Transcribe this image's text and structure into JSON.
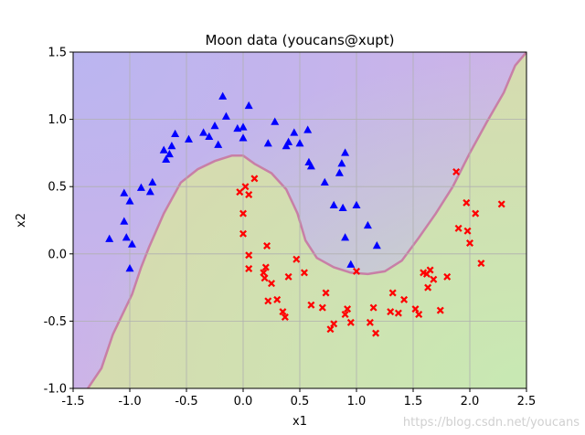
{
  "chart_data": {
    "type": "scatter",
    "title": "Moon data (youcans@xupt)",
    "xlabel": "x1",
    "ylabel": "x2",
    "xlim": [
      -1.5,
      2.5
    ],
    "ylim": [
      -1.0,
      1.5
    ],
    "xticks": [
      "-1.5",
      "-1.0",
      "-0.5",
      "0.0",
      "0.5",
      "1.0",
      "1.5",
      "2.0",
      "2.5"
    ],
    "yticks": [
      "-1.0",
      "-0.5",
      "0.0",
      "0.5",
      "1.0",
      "1.5"
    ],
    "grid": true,
    "background_regions": {
      "class0_color": "#cdb3e8",
      "class1_color": "#d6dbb0",
      "corner_blue": "#b6b6f2",
      "corner_green": "#c4ecb4",
      "boundary_color": "#c87fa6",
      "boundary": [
        [
          -1.37,
          -1.0
        ],
        [
          -1.25,
          -0.85
        ],
        [
          -1.15,
          -0.6
        ],
        [
          -0.98,
          -0.3
        ],
        [
          -0.9,
          -0.1
        ],
        [
          -0.83,
          0.05
        ],
        [
          -0.7,
          0.3
        ],
        [
          -0.55,
          0.53
        ],
        [
          -0.4,
          0.63
        ],
        [
          -0.25,
          0.69
        ],
        [
          -0.1,
          0.73
        ],
        [
          0.0,
          0.73
        ],
        [
          0.1,
          0.67
        ],
        [
          0.25,
          0.6
        ],
        [
          0.38,
          0.48
        ],
        [
          0.48,
          0.3
        ],
        [
          0.55,
          0.1
        ],
        [
          0.65,
          -0.03
        ],
        [
          0.8,
          -0.1
        ],
        [
          0.95,
          -0.14
        ],
        [
          1.1,
          -0.15
        ],
        [
          1.25,
          -0.13
        ],
        [
          1.4,
          -0.05
        ],
        [
          1.55,
          0.12
        ],
        [
          1.7,
          0.3
        ],
        [
          1.85,
          0.5
        ],
        [
          2.0,
          0.75
        ],
        [
          2.15,
          0.98
        ],
        [
          2.3,
          1.2
        ],
        [
          2.4,
          1.4
        ],
        [
          2.5,
          1.5
        ]
      ]
    },
    "series": [
      {
        "marker": "triangle",
        "color": "#0000ff",
        "points": [
          [
            -1.18,
            0.11
          ],
          [
            -1.05,
            0.45
          ],
          [
            -1.05,
            0.24
          ],
          [
            -1.03,
            0.12
          ],
          [
            -1.0,
            0.39
          ],
          [
            -0.98,
            0.07
          ],
          [
            -1.0,
            -0.11
          ],
          [
            -0.9,
            0.49
          ],
          [
            -0.82,
            0.46
          ],
          [
            -0.8,
            0.53
          ],
          [
            -0.7,
            0.77
          ],
          [
            -0.68,
            0.7
          ],
          [
            -0.65,
            0.74
          ],
          [
            -0.63,
            0.8
          ],
          [
            -0.6,
            0.89
          ],
          [
            -0.48,
            0.85
          ],
          [
            -0.35,
            0.9
          ],
          [
            -0.3,
            0.87
          ],
          [
            -0.25,
            0.95
          ],
          [
            -0.22,
            0.81
          ],
          [
            -0.18,
            1.17
          ],
          [
            -0.15,
            1.02
          ],
          [
            -0.05,
            0.93
          ],
          [
            0.0,
            0.86
          ],
          [
            0.0,
            0.94
          ],
          [
            0.05,
            1.1
          ],
          [
            0.22,
            0.82
          ],
          [
            0.28,
            0.98
          ],
          [
            0.38,
            0.8
          ],
          [
            0.4,
            0.83
          ],
          [
            0.45,
            0.9
          ],
          [
            0.5,
            0.82
          ],
          [
            0.57,
            0.92
          ],
          [
            0.58,
            0.68
          ],
          [
            0.6,
            0.65
          ],
          [
            0.72,
            0.53
          ],
          [
            0.8,
            0.36
          ],
          [
            0.85,
            0.6
          ],
          [
            0.87,
            0.67
          ],
          [
            0.88,
            0.34
          ],
          [
            0.9,
            0.75
          ],
          [
            0.9,
            0.12
          ],
          [
            0.95,
            -0.08
          ],
          [
            1.0,
            0.36
          ],
          [
            1.1,
            0.21
          ],
          [
            1.18,
            0.06
          ]
        ]
      },
      {
        "marker": "x",
        "color": "#ff0000",
        "points": [
          [
            -0.03,
            0.46
          ],
          [
            0.0,
            0.3
          ],
          [
            0.02,
            0.5
          ],
          [
            0.05,
            0.44
          ],
          [
            0.0,
            0.15
          ],
          [
            0.05,
            -0.01
          ],
          [
            0.05,
            -0.11
          ],
          [
            0.1,
            0.56
          ],
          [
            0.18,
            -0.14
          ],
          [
            0.19,
            -0.18
          ],
          [
            0.2,
            -0.1
          ],
          [
            0.21,
            0.06
          ],
          [
            0.22,
            -0.35
          ],
          [
            0.25,
            -0.22
          ],
          [
            0.3,
            -0.34
          ],
          [
            0.35,
            -0.43
          ],
          [
            0.37,
            -0.47
          ],
          [
            0.4,
            -0.17
          ],
          [
            0.47,
            -0.04
          ],
          [
            0.54,
            -0.14
          ],
          [
            0.6,
            -0.38
          ],
          [
            0.7,
            -0.4
          ],
          [
            0.73,
            -0.29
          ],
          [
            0.77,
            -0.56
          ],
          [
            0.8,
            -0.52
          ],
          [
            0.9,
            -0.45
          ],
          [
            0.92,
            -0.41
          ],
          [
            0.95,
            -0.51
          ],
          [
            1.0,
            -0.13
          ],
          [
            1.12,
            -0.51
          ],
          [
            1.15,
            -0.4
          ],
          [
            1.17,
            -0.59
          ],
          [
            1.3,
            -0.43
          ],
          [
            1.32,
            -0.29
          ],
          [
            1.37,
            -0.44
          ],
          [
            1.42,
            -0.34
          ],
          [
            1.52,
            -0.41
          ],
          [
            1.55,
            -0.45
          ],
          [
            1.59,
            -0.14
          ],
          [
            1.62,
            -0.15
          ],
          [
            1.63,
            -0.25
          ],
          [
            1.65,
            -0.12
          ],
          [
            1.68,
            -0.19
          ],
          [
            1.74,
            -0.42
          ],
          [
            1.8,
            -0.17
          ],
          [
            1.88,
            0.61
          ],
          [
            1.9,
            0.19
          ],
          [
            1.97,
            0.38
          ],
          [
            1.98,
            0.17
          ],
          [
            2.0,
            0.08
          ],
          [
            2.05,
            0.3
          ],
          [
            2.1,
            -0.07
          ],
          [
            2.28,
            0.37
          ]
        ]
      }
    ]
  },
  "watermark": "https://blog.csdn.net/youcans"
}
